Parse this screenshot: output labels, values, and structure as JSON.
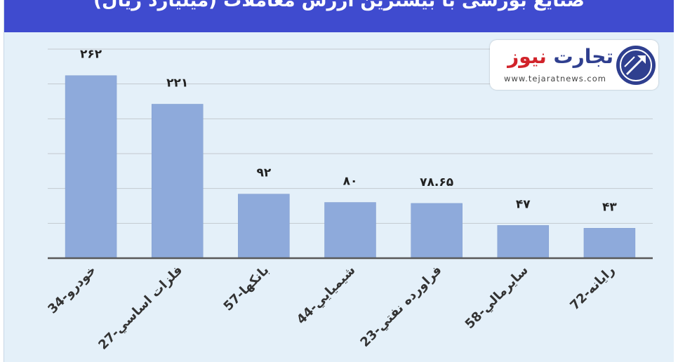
{
  "header": {
    "title": "صنایع بورسی با بیشترین ارزش معاملات (میلیارد ریال)"
  },
  "logo": {
    "name_part1": "تجارت",
    "name_part2": "نیوز",
    "url": "www.tejaratnews.com"
  },
  "colors": {
    "header_bg": "#3f4bcf",
    "plot_bg": "#e4f0f9",
    "bar_fill": "#8eaadb",
    "logo_blue": "#2f3f8f",
    "logo_red": "#d1232a"
  },
  "chart_data": {
    "type": "bar",
    "title": "صنایع بورسی با بیشترین ارزش معاملات (میلیارد ریال)",
    "categories": [
      "34-خودرو",
      "27-فلزات اساسي",
      "57-بانكها",
      "44-شيميايي",
      "23-فراورده نفتي",
      "58-سايرمالي",
      "72-رايانه"
    ],
    "values": [
      262,
      221,
      92,
      80,
      78.65,
      47,
      43
    ],
    "value_labels": [
      "۲۶۲",
      "۲۲۱",
      "۹۲",
      "۸۰",
      "۷۸.۶۵",
      "۴۷",
      "۴۳"
    ],
    "ylim": [
      0,
      300
    ],
    "grid": true,
    "legend": "none"
  }
}
